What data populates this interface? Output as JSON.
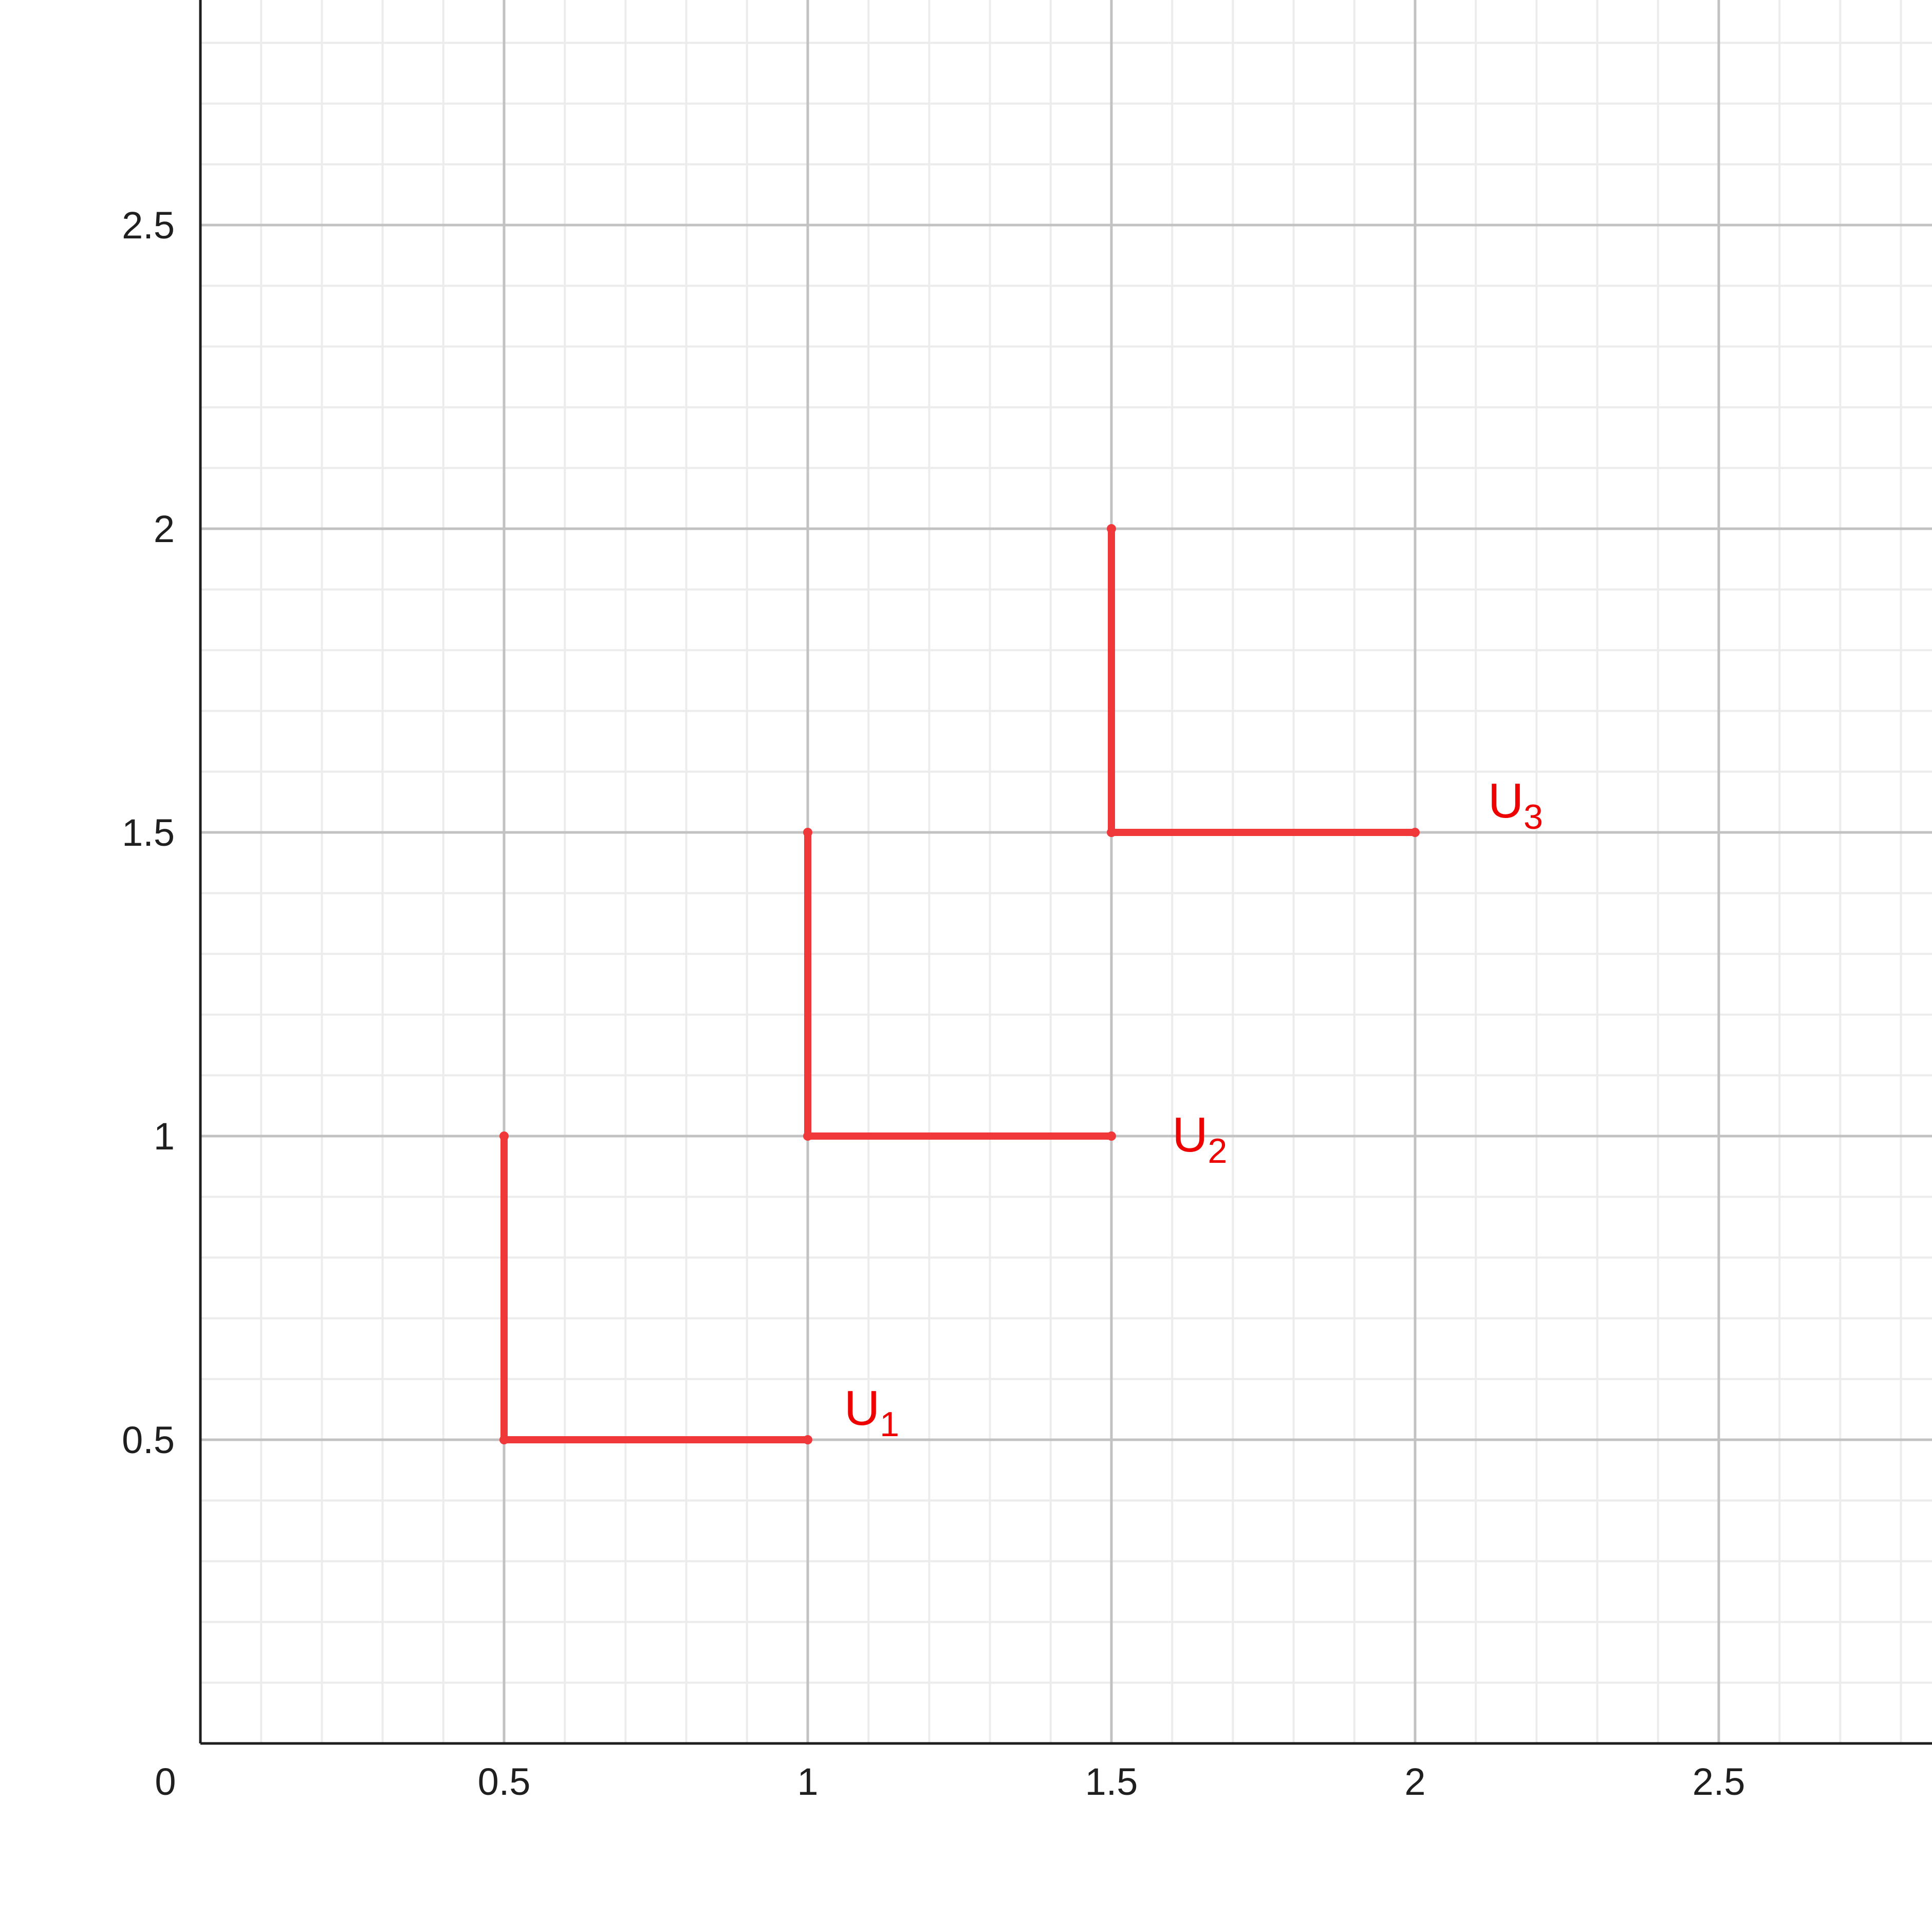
{
  "chart_data": {
    "type": "line",
    "title": "",
    "xlabel": "",
    "ylabel": "",
    "xlim": [
      0,
      2.85
    ],
    "ylim": [
      0,
      2.85
    ],
    "grid": true,
    "origin_label": "0",
    "x_ticks": [
      "0.5",
      "1",
      "1.5",
      "2",
      "2.5"
    ],
    "y_ticks": [
      "0.5",
      "1",
      "1.5",
      "2",
      "2.5"
    ],
    "colors": {
      "series": "#f0383b",
      "label": "#ee0000"
    },
    "series": [
      {
        "name": "U1",
        "label_main": "U",
        "label_sub": "1",
        "points": [
          [
            0.5,
            1
          ],
          [
            0.5,
            0.5
          ],
          [
            1,
            0.5
          ]
        ],
        "label_pos": [
          1.06,
          0.55
        ]
      },
      {
        "name": "U2",
        "label_main": "U",
        "label_sub": "2",
        "points": [
          [
            1,
            1.5
          ],
          [
            1,
            1
          ],
          [
            1.5,
            1
          ]
        ],
        "label_pos": [
          1.6,
          1.0
        ]
      },
      {
        "name": "U3",
        "label_main": "U",
        "label_sub": "3",
        "points": [
          [
            1.5,
            2
          ],
          [
            1.5,
            1.5
          ],
          [
            2,
            1.5
          ]
        ],
        "label_pos": [
          2.12,
          1.55
        ]
      }
    ]
  }
}
